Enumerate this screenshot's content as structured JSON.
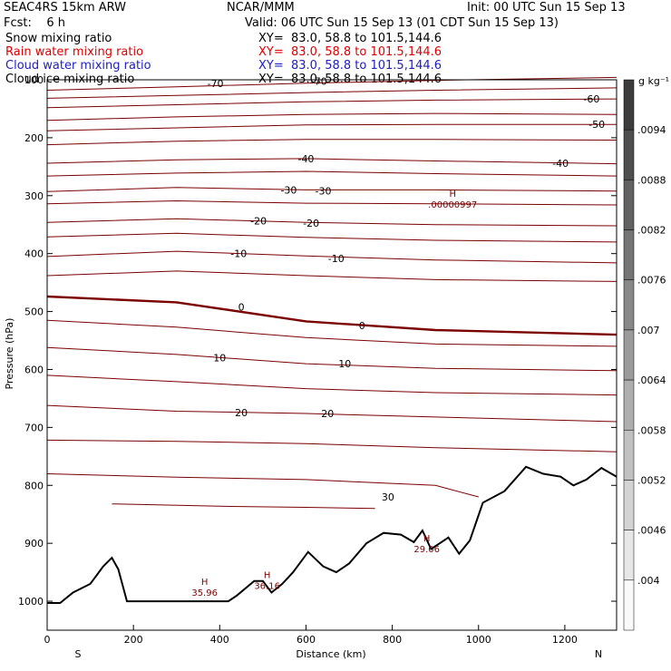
{
  "header": {
    "model": "SEAC4RS 15km ARW",
    "center": "NCAR/MMM",
    "init": "Init: 00 UTC Sun 15 Sep 13",
    "fcst": "Fcst:    6 h",
    "valid": "Valid: 06 UTC Sun 15 Sep 13 (01 CDT Sun 15 Sep 13)"
  },
  "fields": [
    {
      "name": "Snow mixing ratio",
      "xy": "XY=  83.0, 58.8 to 101.5,144.6",
      "color": "#000000"
    },
    {
      "name": "Rain water mixing ratio",
      "xy": "XY=  83.0, 58.8 to 101.5,144.6",
      "color": "#e00000"
    },
    {
      "name": "Cloud water mixing ratio",
      "xy": "XY=  83.0, 58.8 to 101.5,144.6",
      "color": "#2020c0"
    },
    {
      "name": "Cloud ice mixing ratio",
      "xy": "XY=  83.0, 58.8 to 101.5,144.6",
      "color": "#000000"
    }
  ],
  "chart_data": {
    "type": "line",
    "xlabel": "Distance (km)",
    "ylabel": "Pressure (hPa)",
    "xlim": [
      0,
      1320
    ],
    "ylim": [
      1050,
      100
    ],
    "x_ticks": [
      0,
      200,
      400,
      600,
      800,
      1000,
      1200
    ],
    "y_ticks": [
      100,
      200,
      300,
      400,
      500,
      600,
      700,
      800,
      900,
      1000
    ],
    "x_end_labels": {
      "left": "S",
      "right": "N"
    },
    "colorbar": {
      "unit": "g kg⁻¹",
      "labels": [
        ".0094",
        ".0088",
        ".0082",
        ".0076",
        ".007",
        ".0064",
        ".0058",
        ".0052",
        ".0046",
        ".004"
      ]
    },
    "contour_color": "#7a0000",
    "terrain_color": "#000000",
    "isotherms": [
      {
        "t": -70,
        "p": [
          [
            0,
            118
          ],
          [
            300,
            112
          ],
          [
            600,
            106
          ],
          [
            900,
            101
          ],
          [
            1320,
            96
          ]
        ],
        "labels": [
          [
            390,
            106
          ],
          [
            630,
            102
          ]
        ]
      },
      {
        "t": -65,
        "p": [
          [
            0,
            132
          ],
          [
            300,
            127
          ],
          [
            600,
            122
          ],
          [
            900,
            118
          ],
          [
            1320,
            114
          ]
        ],
        "labels": []
      },
      {
        "t": -60,
        "p": [
          [
            0,
            148
          ],
          [
            300,
            143
          ],
          [
            600,
            138
          ],
          [
            900,
            135
          ],
          [
            1320,
            133
          ]
        ],
        "labels": [
          [
            1262,
            133
          ]
        ]
      },
      {
        "t": -55,
        "p": [
          [
            0,
            170
          ],
          [
            300,
            164
          ],
          [
            600,
            160
          ],
          [
            900,
            158
          ],
          [
            1320,
            160
          ]
        ],
        "labels": []
      },
      {
        "t": -50,
        "p": [
          [
            0,
            188
          ],
          [
            300,
            183
          ],
          [
            600,
            178
          ],
          [
            900,
            177
          ],
          [
            1320,
            177
          ]
        ],
        "labels": [
          [
            1274,
            177
          ]
        ]
      },
      {
        "t": -45,
        "p": [
          [
            0,
            212
          ],
          [
            300,
            206
          ],
          [
            600,
            203
          ],
          [
            900,
            203
          ],
          [
            1320,
            204
          ]
        ],
        "labels": []
      },
      {
        "t": -40,
        "p": [
          [
            0,
            244
          ],
          [
            300,
            238
          ],
          [
            600,
            236
          ],
          [
            900,
            240
          ],
          [
            1320,
            245
          ]
        ],
        "labels": [
          [
            600,
            236
          ],
          [
            1190,
            244
          ]
        ]
      },
      {
        "t": -35,
        "p": [
          [
            0,
            266
          ],
          [
            300,
            261
          ],
          [
            600,
            258
          ],
          [
            900,
            262
          ],
          [
            1320,
            266
          ]
        ],
        "labels": []
      },
      {
        "t": -30,
        "p": [
          [
            0,
            293
          ],
          [
            300,
            286
          ],
          [
            600,
            290
          ],
          [
            900,
            290
          ],
          [
            1320,
            292
          ]
        ],
        "labels": [
          [
            560,
            290
          ],
          [
            640,
            292
          ]
        ]
      },
      {
        "t": -25,
        "p": [
          [
            0,
            314
          ],
          [
            300,
            309
          ],
          [
            600,
            313
          ],
          [
            900,
            314
          ],
          [
            1320,
            316
          ]
        ],
        "labels": []
      },
      {
        "t": -20,
        "p": [
          [
            0,
            346
          ],
          [
            300,
            340
          ],
          [
            600,
            346
          ],
          [
            900,
            350
          ],
          [
            1320,
            352
          ]
        ],
        "labels": [
          [
            490,
            343
          ],
          [
            612,
            347
          ]
        ]
      },
      {
        "t": -15,
        "p": [
          [
            0,
            371
          ],
          [
            300,
            365
          ],
          [
            600,
            372
          ],
          [
            900,
            377
          ],
          [
            1320,
            380
          ]
        ],
        "labels": []
      },
      {
        "t": -10,
        "p": [
          [
            0,
            405
          ],
          [
            300,
            396
          ],
          [
            600,
            404
          ],
          [
            900,
            411
          ],
          [
            1320,
            416
          ]
        ],
        "labels": [
          [
            444,
            400
          ],
          [
            670,
            408
          ]
        ]
      },
      {
        "t": -5,
        "p": [
          [
            0,
            438
          ],
          [
            300,
            430
          ],
          [
            600,
            438
          ],
          [
            900,
            445
          ],
          [
            1320,
            448
          ]
        ],
        "labels": []
      },
      {
        "t": 0,
        "p": [
          [
            0,
            474
          ],
          [
            300,
            484
          ],
          [
            600,
            517
          ],
          [
            900,
            532
          ],
          [
            1320,
            540
          ]
        ],
        "labels": [
          [
            450,
            492
          ],
          [
            730,
            524
          ]
        ]
      },
      {
        "t": 5,
        "p": [
          [
            0,
            515
          ],
          [
            300,
            527
          ],
          [
            600,
            545
          ],
          [
            900,
            556
          ],
          [
            1320,
            560
          ]
        ],
        "labels": []
      },
      {
        "t": 10,
        "p": [
          [
            0,
            562
          ],
          [
            300,
            574
          ],
          [
            600,
            590
          ],
          [
            900,
            598
          ],
          [
            1320,
            602
          ]
        ],
        "labels": [
          [
            400,
            580
          ],
          [
            690,
            590
          ]
        ]
      },
      {
        "t": 15,
        "p": [
          [
            0,
            610
          ],
          [
            300,
            621
          ],
          [
            600,
            633
          ],
          [
            900,
            640
          ],
          [
            1320,
            644
          ]
        ],
        "labels": []
      },
      {
        "t": 20,
        "p": [
          [
            0,
            662
          ],
          [
            300,
            672
          ],
          [
            600,
            676
          ],
          [
            900,
            682
          ],
          [
            1320,
            690
          ]
        ],
        "labels": [
          [
            450,
            674
          ],
          [
            650,
            676
          ]
        ]
      },
      {
        "t": 25,
        "p": [
          [
            0,
            722
          ],
          [
            300,
            724
          ],
          [
            600,
            728
          ],
          [
            900,
            735
          ],
          [
            1320,
            742
          ]
        ],
        "labels": []
      },
      {
        "t": 30,
        "p": [
          [
            0,
            780
          ],
          [
            300,
            786
          ],
          [
            600,
            790
          ],
          [
            900,
            800
          ],
          [
            1000,
            820
          ]
        ],
        "labels": [
          [
            790,
            820
          ]
        ]
      },
      {
        "t": 35,
        "p": [
          [
            150,
            832
          ],
          [
            400,
            836
          ],
          [
            600,
            838
          ],
          [
            760,
            840
          ]
        ],
        "labels": []
      }
    ],
    "terrain": [
      [
        0,
        1003
      ],
      [
        30,
        1003
      ],
      [
        60,
        985
      ],
      [
        100,
        970
      ],
      [
        130,
        940
      ],
      [
        150,
        925
      ],
      [
        165,
        945
      ],
      [
        185,
        1000
      ],
      [
        300,
        1000
      ],
      [
        420,
        1000
      ],
      [
        440,
        990
      ],
      [
        480,
        965
      ],
      [
        500,
        965
      ],
      [
        520,
        985
      ],
      [
        545,
        970
      ],
      [
        570,
        950
      ],
      [
        605,
        915
      ],
      [
        640,
        940
      ],
      [
        670,
        950
      ],
      [
        700,
        935
      ],
      [
        740,
        900
      ],
      [
        780,
        882
      ],
      [
        820,
        885
      ],
      [
        850,
        898
      ],
      [
        870,
        878
      ],
      [
        890,
        910
      ],
      [
        910,
        900
      ],
      [
        930,
        890
      ],
      [
        955,
        918
      ],
      [
        980,
        895
      ],
      [
        1010,
        830
      ],
      [
        1060,
        810
      ],
      [
        1110,
        768
      ],
      [
        1150,
        780
      ],
      [
        1190,
        785
      ],
      [
        1220,
        800
      ],
      [
        1250,
        790
      ],
      [
        1285,
        770
      ],
      [
        1320,
        785
      ]
    ],
    "highs": [
      {
        "label": "H",
        "value": ".00000997",
        "x": 940,
        "p": 305
      },
      {
        "label": "H",
        "value": "35.96",
        "x": 365,
        "p": 975
      },
      {
        "label": "H",
        "value": "36.16",
        "x": 510,
        "p": 963
      },
      {
        "label": "H",
        "value": "29.06",
        "x": 880,
        "p": 900
      }
    ]
  }
}
